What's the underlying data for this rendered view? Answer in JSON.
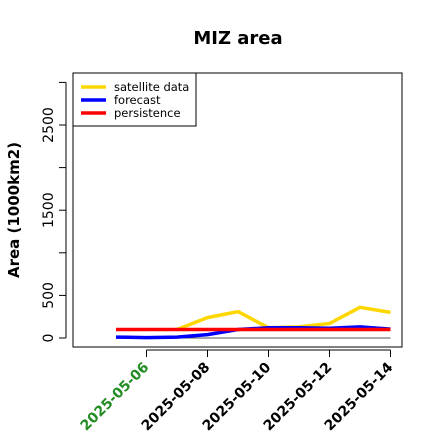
{
  "chart_data": {
    "type": "line",
    "title": "MIZ area",
    "xlabel": "",
    "ylabel": "Area (1000km2)",
    "x": [
      "2025-05-05",
      "2025-05-06",
      "2025-05-07",
      "2025-05-08",
      "2025-05-09",
      "2025-05-10",
      "2025-05-11",
      "2025-05-12",
      "2025-05-13",
      "2025-05-14"
    ],
    "x_ticks": [
      "2025-05-06",
      "2025-05-08",
      "2025-05-10",
      "2025-05-12",
      "2025-05-14"
    ],
    "highlight_tick": "2025-05-06",
    "highlight_color": "#228B22",
    "ylim": [
      -80,
      3050
    ],
    "y_ticks": [
      0,
      500,
      1500,
      2500
    ],
    "y_minor_ticks": [
      0,
      500,
      1000,
      1500,
      2000,
      2500,
      3000
    ],
    "grid": false,
    "legend_position": "top-left",
    "baseline_value": 0,
    "series": [
      {
        "name": "satellite data",
        "color": "#FFD700",
        "values": [
          null,
          null,
          100,
          240,
          310,
          120,
          130,
          170,
          360,
          300
        ]
      },
      {
        "name": "forecast",
        "color": "#0000FF",
        "values": [
          10,
          5,
          10,
          40,
          100,
          120,
          120,
          115,
          130,
          105
        ]
      },
      {
        "name": "persistence",
        "color": "#FF0000",
        "values": [
          100,
          100,
          100,
          100,
          100,
          100,
          100,
          100,
          100,
          100
        ]
      }
    ]
  }
}
